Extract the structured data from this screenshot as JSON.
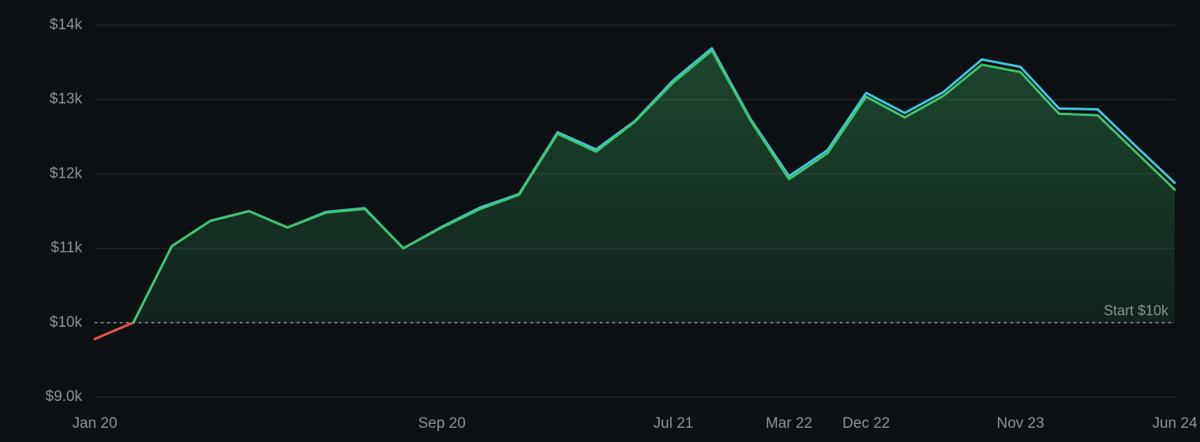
{
  "chart_data": {
    "type": "line",
    "categories": [
      "Jan 20",
      null,
      null,
      null,
      null,
      null,
      null,
      null,
      null,
      "Sep 20",
      null,
      null,
      null,
      null,
      null,
      "Jul 21",
      null,
      null,
      "Mar 22",
      null,
      "Dec 22",
      null,
      null,
      null,
      "Nov 23",
      null,
      null,
      null,
      "Jun 24"
    ],
    "series": [
      {
        "color": "#3fc8e0",
        "values": [
          9780,
          10000,
          11030,
          11370,
          11500,
          11280,
          11490,
          11540,
          11000,
          11290,
          11550,
          11730,
          12560,
          12330,
          12710,
          13260,
          13690,
          12740,
          11970,
          12320,
          13090,
          12820,
          13100,
          13540,
          13440,
          12880,
          12870,
          12370,
          11880
        ]
      },
      {
        "color": "#3ec46d",
        "values": [
          9780,
          10000,
          11030,
          11370,
          11500,
          11280,
          11480,
          11530,
          11000,
          11280,
          11530,
          11720,
          12540,
          12300,
          12700,
          13230,
          13660,
          12720,
          11930,
          12280,
          13040,
          12760,
          13050,
          13470,
          13370,
          12810,
          12790,
          12290,
          11790
        ]
      }
    ],
    "below_color": "#e5534b",
    "area_color": "#3ec46d",
    "baseline": {
      "value": 10000,
      "label": "Start $10k"
    },
    "ylim": [
      9000,
      14000
    ],
    "yticks": [
      {
        "value": 9000,
        "label": "$9.0k"
      },
      {
        "value": 10000,
        "label": "$10k"
      },
      {
        "value": 11000,
        "label": "$11k"
      },
      {
        "value": 12000,
        "label": "$12k"
      },
      {
        "value": 13000,
        "label": "$13k"
      },
      {
        "value": 14000,
        "label": "$14k"
      }
    ],
    "grid": true
  }
}
